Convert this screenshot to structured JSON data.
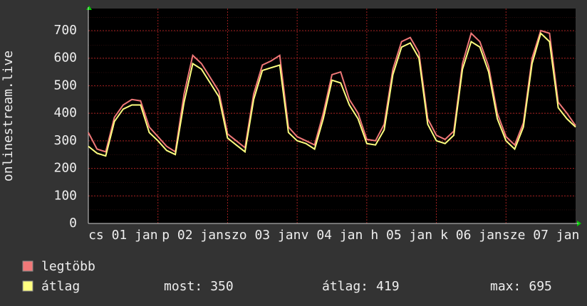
{
  "chart_data": {
    "type": "line",
    "ylabel": "onlinestream.live",
    "x": [
      0,
      3,
      6,
      9,
      12,
      15,
      18,
      21,
      24,
      27,
      30,
      33,
      36,
      39,
      42,
      45,
      48,
      51,
      54,
      57,
      60,
      63,
      66,
      69,
      72,
      75,
      78,
      81,
      84,
      87,
      90,
      93,
      96,
      99,
      102,
      105,
      108,
      111,
      114,
      117,
      120,
      123,
      126,
      129,
      132,
      135,
      138,
      141,
      144,
      147,
      150,
      153,
      156,
      159,
      162,
      165,
      168
    ],
    "xlim": [
      0,
      168
    ],
    "xticks": [
      {
        "value": 0,
        "label": "cs 01 jan"
      },
      {
        "value": 24,
        "label": "p 02 jan"
      },
      {
        "value": 48,
        "label": "szo 03 jan"
      },
      {
        "value": 72,
        "label": "v 04 jan"
      },
      {
        "value": 96,
        "label": "h 05 jan"
      },
      {
        "value": 120,
        "label": "k 06 jan"
      },
      {
        "value": 144,
        "label": "sze 07 jan"
      }
    ],
    "ylim": [
      0,
      780
    ],
    "yticks": [
      0,
      100,
      200,
      300,
      400,
      500,
      600,
      700
    ],
    "grid": true,
    "series": [
      {
        "name": "legtöbb",
        "color": "#f07878",
        "values": [
          330,
          270,
          260,
          385,
          430,
          450,
          445,
          350,
          315,
          280,
          260,
          470,
          610,
          580,
          530,
          480,
          325,
          300,
          275,
          470,
          575,
          590,
          610,
          350,
          315,
          300,
          285,
          400,
          540,
          550,
          450,
          400,
          305,
          300,
          360,
          560,
          660,
          675,
          620,
          380,
          320,
          305,
          335,
          580,
          690,
          660,
          570,
          400,
          315,
          285,
          365,
          600,
          700,
          690,
          440,
          400,
          355
        ]
      },
      {
        "name": "átlag",
        "color": "#ffff80",
        "values": [
          280,
          255,
          245,
          370,
          415,
          430,
          430,
          330,
          300,
          265,
          250,
          440,
          580,
          560,
          510,
          460,
          310,
          285,
          260,
          450,
          555,
          565,
          575,
          330,
          300,
          290,
          270,
          380,
          520,
          510,
          430,
          380,
          290,
          285,
          340,
          540,
          640,
          655,
          600,
          360,
          300,
          290,
          320,
          560,
          660,
          640,
          550,
          380,
          300,
          270,
          350,
          580,
          690,
          660,
          420,
          380,
          350
        ]
      }
    ],
    "summary": [
      {
        "label": "most:",
        "value": 350
      },
      {
        "label": "átlag:",
        "value": 419
      },
      {
        "label": "max:",
        "value": 695
      }
    ]
  }
}
